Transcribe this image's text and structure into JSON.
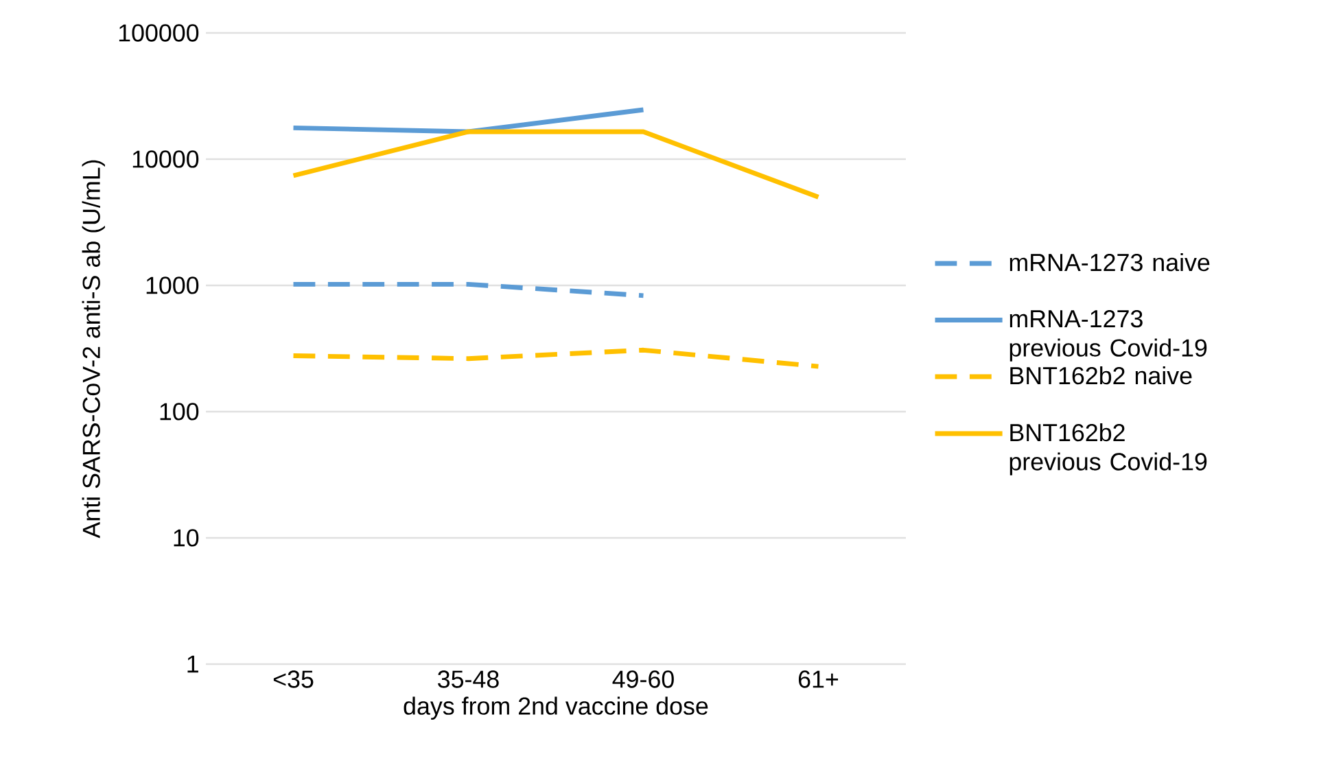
{
  "chart_data": {
    "type": "line",
    "xlabel": "days from 2nd vaccine dose",
    "ylabel": "Anti SARS-CoV-2 anti-S ab (U/mL)",
    "categories": [
      "<35",
      "35-48",
      "49-60",
      "61+"
    ],
    "series": [
      {
        "name": "mRNA-1273 naive",
        "color": "#5b9bd5",
        "line_style": "dashed",
        "values": [
          1020,
          1020,
          830,
          null
        ]
      },
      {
        "name": "mRNA-1273 previous Covid-19",
        "color": "#5b9bd5",
        "line_style": "solid",
        "values": [
          17700,
          16500,
          24600,
          null
        ]
      },
      {
        "name": "BNT162b2 naive",
        "color": "#ffc000",
        "line_style": "dashed",
        "values": [
          277,
          263,
          307,
          228
        ]
      },
      {
        "name": "BNT162b2 previous Covid-19",
        "color": "#ffc000",
        "line_style": "solid",
        "values": [
          7400,
          16500,
          16500,
          5000
        ]
      }
    ],
    "log": "y",
    "ylim": [
      1,
      100000
    ],
    "yticks": [
      1,
      10,
      100,
      1000,
      10000,
      100000
    ],
    "grid": "y",
    "legend": "right",
    "marker": "none"
  }
}
